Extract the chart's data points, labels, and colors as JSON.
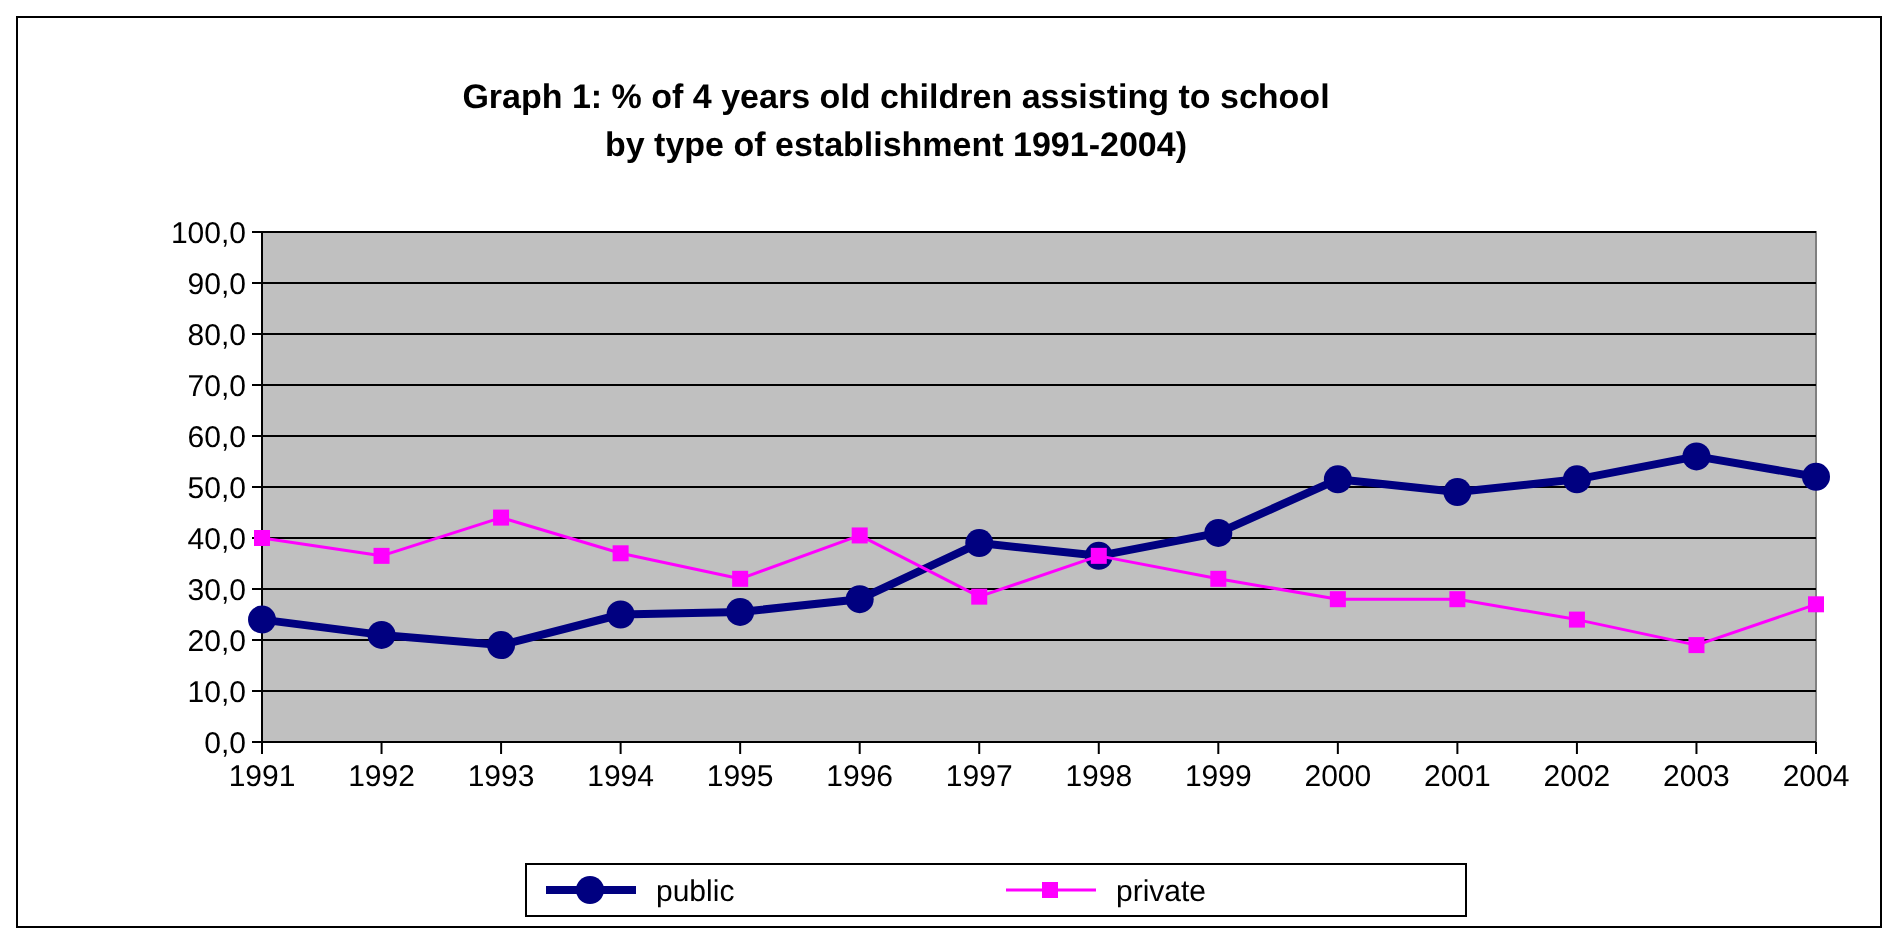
{
  "chart_data": {
    "type": "line",
    "title": "Graph 1: % of 4 years old children assisting to school\nby type of establishment 1991-2004)",
    "categories": [
      "1991",
      "1992",
      "1993",
      "1994",
      "1995",
      "1996",
      "1997",
      "1998",
      "1999",
      "2000",
      "2001",
      "2002",
      "2003",
      "2004"
    ],
    "series": [
      {
        "name": "public",
        "color": "#000080",
        "marker": "circle",
        "values": [
          24,
          21,
          19,
          25,
          25.5,
          28,
          39,
          36.5,
          41,
          51.5,
          49,
          51.5,
          56,
          52
        ]
      },
      {
        "name": "private",
        "color": "#ff00ff",
        "marker": "square",
        "values": [
          40,
          36.5,
          44,
          37,
          32,
          40.5,
          28.5,
          36.5,
          32,
          28,
          28,
          24,
          19,
          27
        ]
      }
    ],
    "ylim": [
      0,
      100
    ],
    "yticks": [
      {
        "value": 0,
        "label": "0,0"
      },
      {
        "value": 10,
        "label": "10,0"
      },
      {
        "value": 20,
        "label": "20,0"
      },
      {
        "value": 30,
        "label": "30,0"
      },
      {
        "value": 40,
        "label": "40,0"
      },
      {
        "value": 50,
        "label": "50,0"
      },
      {
        "value": 60,
        "label": "60,0"
      },
      {
        "value": 70,
        "label": "70,0"
      },
      {
        "value": 80,
        "label": "80,0"
      },
      {
        "value": 90,
        "label": "90,0"
      },
      {
        "value": 100,
        "label": "100,0"
      }
    ],
    "grid": "y",
    "legend": "bottom",
    "line_style": "solid"
  }
}
